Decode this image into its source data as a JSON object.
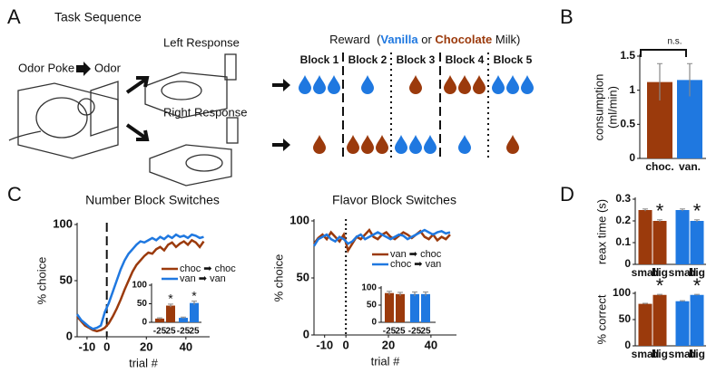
{
  "panels": [
    "A",
    "B",
    "C",
    "D"
  ],
  "diagram": {
    "title": "Task Sequence",
    "left_label": "Left Response",
    "right_label": "Right Response",
    "poke_label": "Odor Poke",
    "odor_label": "Odor",
    "reward": {
      "prefix": "Reward  (",
      "vanilla": "Vanilla",
      "mid": " or ",
      "chocolate": "Chocolate",
      "suffix": " Milk)",
      "vanilla_color": "#1f78e0",
      "chocolate_color": "#9b3a0c"
    },
    "blocks": [
      {
        "label": "Block 1",
        "left": 3,
        "left_color": "#1f78e0",
        "right": 1,
        "right_color": "#9b3a0c"
      },
      {
        "label": "Block 2",
        "left": 1,
        "left_color": "#1f78e0",
        "right": 3,
        "right_color": "#9b3a0c"
      },
      {
        "label": "Block 3",
        "left": 1,
        "left_color": "#9b3a0c",
        "right": 3,
        "right_color": "#1f78e0"
      },
      {
        "label": "Block 4",
        "left": 3,
        "left_color": "#9b3a0c",
        "right": 1,
        "right_color": "#1f78e0"
      },
      {
        "label": "Block 5",
        "left": 3,
        "left_color": "#1f78e0",
        "right": 1,
        "right_color": "#9b3a0c"
      }
    ]
  },
  "chart_data": [
    {
      "type": "bar",
      "ylabel": [
        "consumption",
        "(ml/min)"
      ],
      "categories": [
        "choc.",
        "van."
      ],
      "values": [
        1.12,
        1.15
      ],
      "errors": [
        0.27,
        0.24
      ],
      "colors": [
        "#9b3a0c",
        "#1f78e0"
      ],
      "ylim": [
        0,
        1.5
      ],
      "yticks": [
        0,
        0.5,
        1,
        1.5
      ],
      "annotations": [
        "n.s."
      ]
    },
    {
      "type": "line",
      "title": "Number Block Switches",
      "xlabel": "trial #",
      "ylabel": "% choice",
      "x": [
        -15,
        -13,
        -11,
        -9,
        -7,
        -5,
        -3,
        -1,
        1,
        3,
        5,
        7,
        9,
        11,
        13,
        15,
        17,
        19,
        21,
        23,
        25,
        27,
        29,
        31,
        33,
        35,
        37,
        39,
        41,
        43,
        45,
        47,
        49
      ],
      "series": [
        {
          "name": "choc ➡ choc",
          "color": "#9b3a0c",
          "values": [
            18,
            14,
            10,
            8,
            6,
            5,
            6,
            8,
            12,
            18,
            25,
            33,
            42,
            50,
            58,
            64,
            68,
            72,
            75,
            74,
            78,
            80,
            77,
            82,
            84,
            80,
            83,
            85,
            82,
            86,
            84,
            80,
            85
          ]
        },
        {
          "name": "van ➡ van",
          "color": "#1f78e0",
          "values": [
            20,
            15,
            12,
            9,
            7,
            8,
            10,
            22,
            30,
            40,
            50,
            60,
            68,
            74,
            78,
            82,
            85,
            84,
            86,
            88,
            86,
            89,
            87,
            90,
            88,
            91,
            89,
            90,
            88,
            91,
            90,
            88,
            89
          ]
        }
      ],
      "vline": 0,
      "vline_style": "dashed",
      "xlim": [
        -15,
        52
      ],
      "xticks": [
        -10,
        0,
        20,
        40
      ],
      "ylim": [
        0,
        100
      ],
      "yticks": [
        0,
        50,
        100
      ]
    },
    {
      "type": "bar",
      "categories": [
        "-25",
        "25",
        "-25",
        "25"
      ],
      "values": [
        10,
        45,
        12,
        52
      ],
      "errors": [
        2,
        4,
        2,
        5
      ],
      "colors": [
        "#9b3a0c",
        "#9b3a0c",
        "#1f78e0",
        "#1f78e0"
      ],
      "ylim": [
        0,
        100
      ],
      "yticks": [
        0,
        50,
        100
      ],
      "annotations": [
        "*",
        "*"
      ]
    },
    {
      "type": "line",
      "title": "Flavor Block Switches",
      "xlabel": "trial #",
      "ylabel": "% choice",
      "x": [
        -15,
        -13,
        -11,
        -9,
        -7,
        -5,
        -3,
        -1,
        1,
        3,
        5,
        7,
        9,
        11,
        13,
        15,
        17,
        19,
        21,
        23,
        25,
        27,
        29,
        31,
        33,
        35,
        37,
        39,
        41,
        43,
        45,
        47,
        49
      ],
      "series": [
        {
          "name": "van ➡ choc",
          "color": "#9b3a0c",
          "values": [
            80,
            85,
            88,
            84,
            90,
            86,
            82,
            88,
            74,
            80,
            86,
            84,
            88,
            92,
            86,
            84,
            88,
            90,
            86,
            84,
            87,
            90,
            88,
            85,
            88,
            91,
            86,
            84,
            88,
            83,
            86,
            84,
            88
          ]
        },
        {
          "name": "choc ➡ van",
          "color": "#1f78e0",
          "values": [
            78,
            84,
            86,
            88,
            84,
            82,
            86,
            84,
            80,
            82,
            86,
            88,
            84,
            86,
            88,
            90,
            88,
            86,
            84,
            86,
            88,
            87,
            84,
            86,
            88,
            90,
            92,
            90,
            88,
            90,
            91,
            89,
            90
          ]
        }
      ],
      "vline": 0,
      "vline_style": "dotted",
      "xlim": [
        -15,
        52
      ],
      "xticks": [
        -10,
        0,
        20,
        40
      ],
      "ylim": [
        0,
        100
      ],
      "yticks": [
        0,
        50,
        100
      ]
    },
    {
      "type": "bar",
      "categories": [
        "-25",
        "25",
        "-25",
        "25"
      ],
      "values": [
        85,
        82,
        82,
        82
      ],
      "errors": [
        5,
        5,
        6,
        6
      ],
      "colors": [
        "#9b3a0c",
        "#9b3a0c",
        "#1f78e0",
        "#1f78e0"
      ],
      "ylim": [
        0,
        100
      ],
      "yticks": [
        0,
        50,
        100
      ]
    },
    {
      "type": "bar",
      "ylabel": [
        "reax time (s)"
      ],
      "categories": [
        "small",
        "big",
        "small",
        "big"
      ],
      "values": [
        0.25,
        0.2,
        0.25,
        0.2
      ],
      "errors": [
        0.005,
        0.005,
        0.005,
        0.005
      ],
      "colors": [
        "#9b3a0c",
        "#9b3a0c",
        "#1f78e0",
        "#1f78e0"
      ],
      "ylim": [
        0,
        0.3
      ],
      "yticks": [
        0,
        0.1,
        0.2,
        0.3
      ],
      "annotations": [
        "*",
        "*"
      ]
    },
    {
      "type": "bar",
      "ylabel": [
        "% correct"
      ],
      "categories": [
        "small",
        "big",
        "small",
        "big"
      ],
      "values": [
        80,
        97,
        85,
        97
      ],
      "errors": [
        1,
        1,
        1,
        1
      ],
      "colors": [
        "#9b3a0c",
        "#9b3a0c",
        "#1f78e0",
        "#1f78e0"
      ],
      "ylim": [
        0,
        100
      ],
      "yticks": [
        0,
        50,
        100
      ],
      "annotations": [
        "*",
        "*"
      ]
    }
  ]
}
